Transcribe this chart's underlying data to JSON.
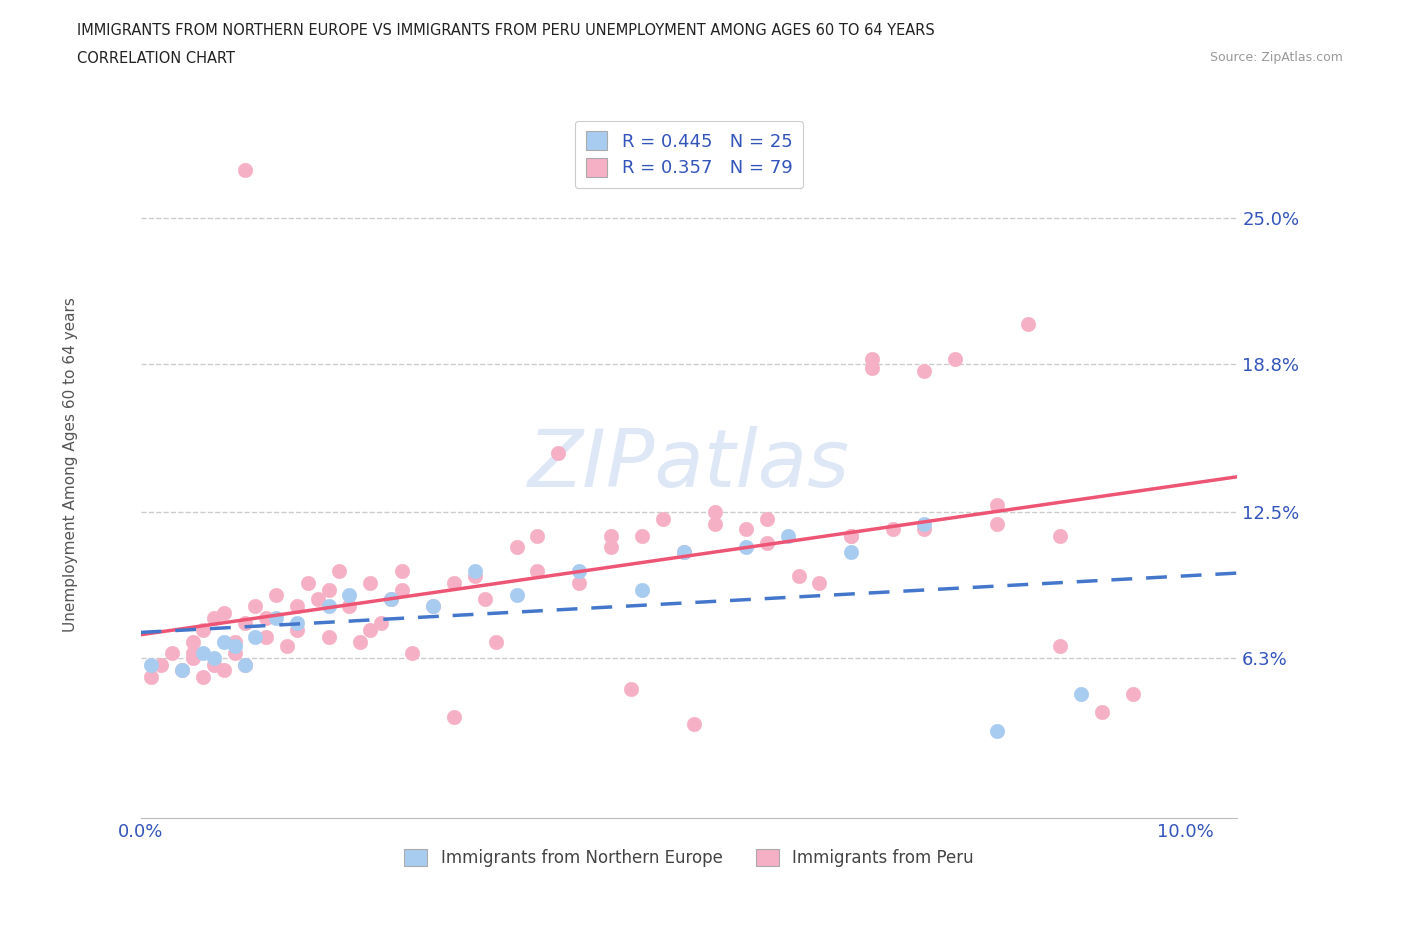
{
  "title_line1": "IMMIGRANTS FROM NORTHERN EUROPE VS IMMIGRANTS FROM PERU UNEMPLOYMENT AMONG AGES 60 TO 64 YEARS",
  "title_line2": "CORRELATION CHART",
  "source_text": "Source: ZipAtlas.com",
  "ylabel": "Unemployment Among Ages 60 to 64 years",
  "xlim": [
    0.0,
    0.105
  ],
  "ylim": [
    -0.005,
    0.295
  ],
  "ytick_vals": [
    0.0,
    0.063,
    0.125,
    0.188,
    0.25
  ],
  "ytick_labels": [
    "",
    "6.3%",
    "12.5%",
    "18.8%",
    "25.0%"
  ],
  "xtick_vals": [
    0.0,
    0.02,
    0.04,
    0.06,
    0.08,
    0.1
  ],
  "xtick_labels": [
    "0.0%",
    "",
    "",
    "",
    "",
    "10.0%"
  ],
  "blue_fill": "#a8ccf0",
  "pink_fill": "#f5b0c5",
  "blue_line": "#4477cc",
  "pink_line": "#ee5575",
  "label_color": "#3355bb",
  "r_blue": "0.445",
  "n_blue": "25",
  "r_pink": "0.357",
  "n_pink": "79",
  "watermark": "ZIPatlas",
  "blue_x": [
    0.001,
    0.004,
    0.006,
    0.007,
    0.008,
    0.009,
    0.01,
    0.011,
    0.013,
    0.015,
    0.018,
    0.02,
    0.024,
    0.028,
    0.032,
    0.036,
    0.042,
    0.048,
    0.052,
    0.058,
    0.062,
    0.068,
    0.075,
    0.082,
    0.09
  ],
  "blue_y": [
    0.06,
    0.058,
    0.065,
    0.063,
    0.07,
    0.068,
    0.06,
    0.072,
    0.08,
    0.078,
    0.085,
    0.09,
    0.088,
    0.085,
    0.1,
    0.09,
    0.1,
    0.092,
    0.108,
    0.11,
    0.115,
    0.108,
    0.12,
    0.032,
    0.048
  ],
  "pink_x": [
    0.001,
    0.002,
    0.003,
    0.004,
    0.005,
    0.005,
    0.006,
    0.006,
    0.007,
    0.007,
    0.008,
    0.008,
    0.009,
    0.009,
    0.01,
    0.01,
    0.011,
    0.012,
    0.013,
    0.014,
    0.015,
    0.016,
    0.017,
    0.018,
    0.019,
    0.02,
    0.021,
    0.022,
    0.023,
    0.024,
    0.025,
    0.026,
    0.028,
    0.03,
    0.032,
    0.034,
    0.036,
    0.038,
    0.04,
    0.042,
    0.045,
    0.047,
    0.05,
    0.053,
    0.055,
    0.058,
    0.06,
    0.063,
    0.065,
    0.068,
    0.07,
    0.072,
    0.075,
    0.078,
    0.082,
    0.085,
    0.088,
    0.092,
    0.095,
    0.01,
    0.015,
    0.022,
    0.03,
    0.038,
    0.045,
    0.052,
    0.06,
    0.068,
    0.075,
    0.082,
    0.088,
    0.048,
    0.033,
    0.025,
    0.018,
    0.012,
    0.055,
    0.07,
    0.005
  ],
  "pink_y": [
    0.055,
    0.06,
    0.065,
    0.058,
    0.063,
    0.07,
    0.055,
    0.075,
    0.06,
    0.08,
    0.058,
    0.082,
    0.065,
    0.07,
    0.06,
    0.078,
    0.085,
    0.072,
    0.09,
    0.068,
    0.075,
    0.095,
    0.088,
    0.072,
    0.1,
    0.085,
    0.07,
    0.095,
    0.078,
    0.088,
    0.092,
    0.065,
    0.085,
    0.038,
    0.098,
    0.07,
    0.11,
    0.115,
    0.15,
    0.095,
    0.115,
    0.05,
    0.122,
    0.035,
    0.12,
    0.118,
    0.122,
    0.098,
    0.095,
    0.115,
    0.186,
    0.118,
    0.185,
    0.19,
    0.128,
    0.205,
    0.068,
    0.04,
    0.048,
    0.27,
    0.085,
    0.075,
    0.095,
    0.1,
    0.11,
    0.108,
    0.112,
    0.115,
    0.118,
    0.12,
    0.115,
    0.115,
    0.088,
    0.1,
    0.092,
    0.08,
    0.125,
    0.19,
    0.065
  ]
}
